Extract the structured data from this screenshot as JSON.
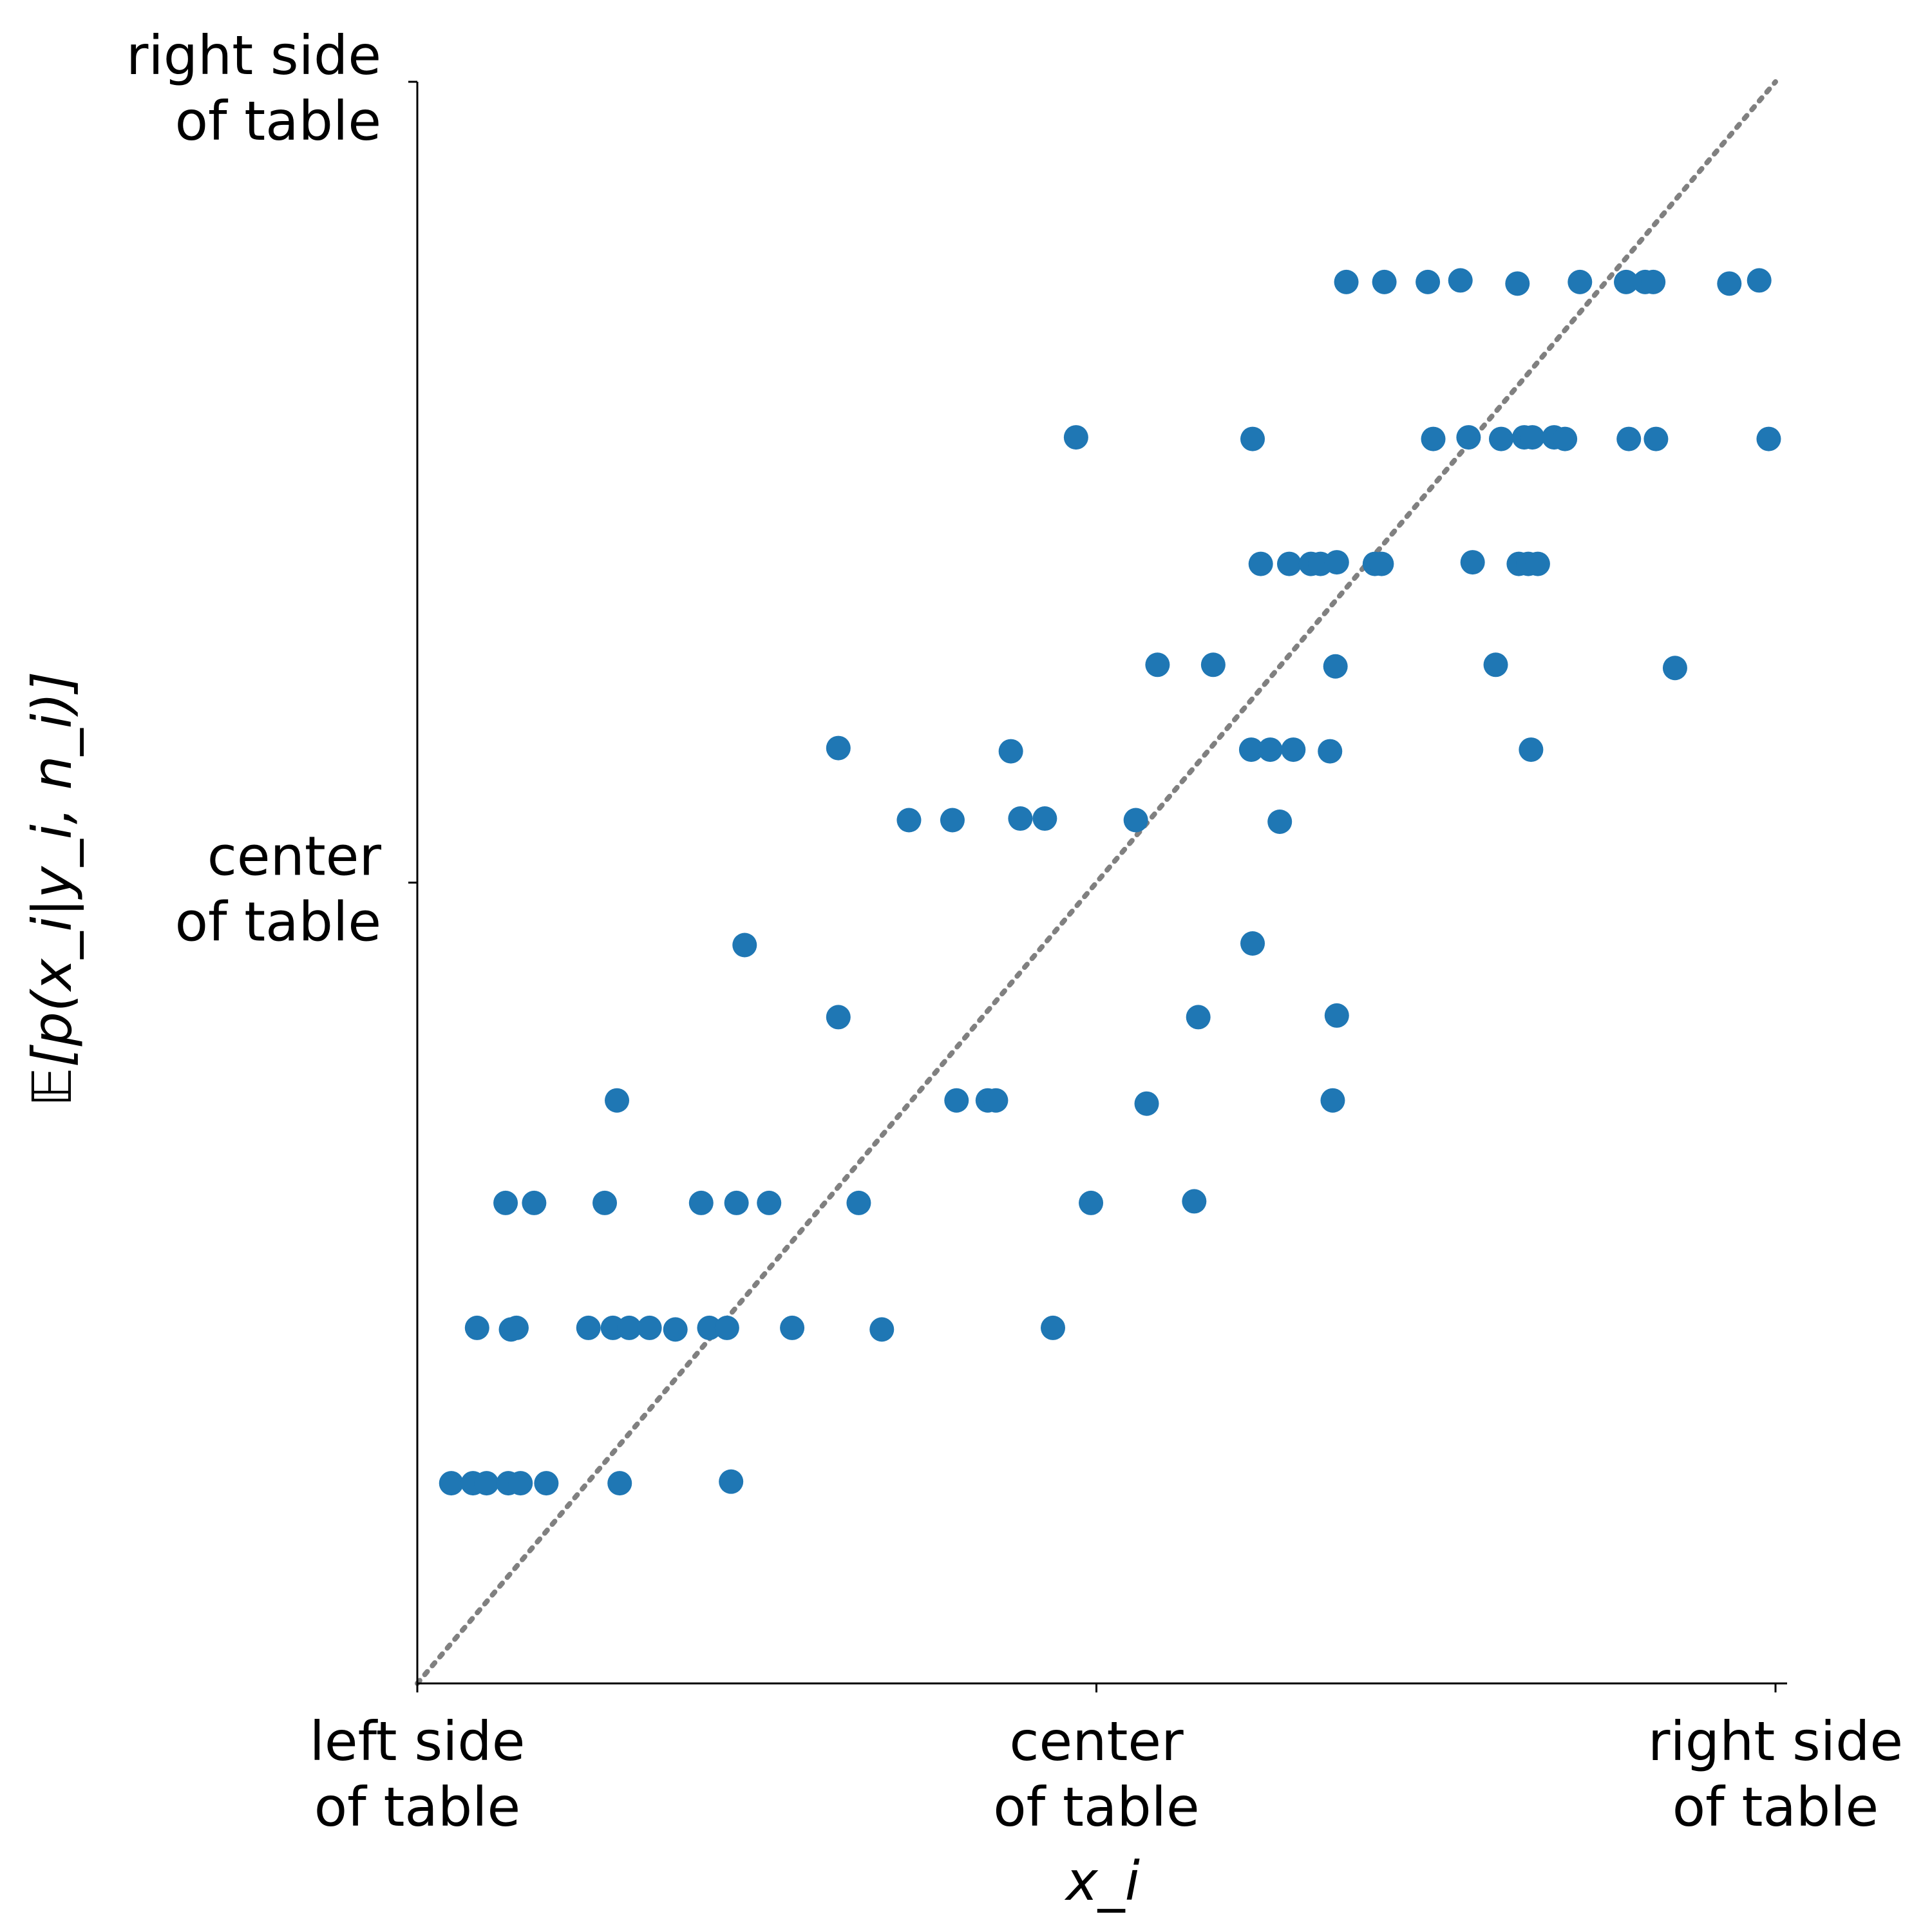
{
  "chart_data": {
    "type": "scatter",
    "title": "",
    "xlabel": "x_i",
    "ylabel": "𝔼[p(x_i|y_i, n_i)]",
    "xlim": [
      0,
      1
    ],
    "ylim": [
      0,
      1
    ],
    "grid": false,
    "x_ticks": [
      {
        "value": 0.0,
        "line1": "left side",
        "line2": "of table"
      },
      {
        "value": 0.5,
        "line1": "center",
        "line2": "of table"
      },
      {
        "value": 1.0,
        "line1": "right side",
        "line2": "of table"
      }
    ],
    "y_ticks": [
      {
        "value": 0.5,
        "line1": "center",
        "line2": "of table"
      },
      {
        "value": 1.0,
        "line1": "right side",
        "line2": "of table"
      }
    ],
    "reference_line": {
      "style": "dotted",
      "color": "#808080",
      "from": [
        0,
        0
      ],
      "to": [
        1,
        1
      ]
    },
    "marker_color": "#1f77b4",
    "series": [
      {
        "points": [
          [
            0.025,
            0.125
          ],
          [
            0.041,
            0.125
          ],
          [
            0.051,
            0.125
          ],
          [
            0.067,
            0.125
          ],
          [
            0.076,
            0.125
          ],
          [
            0.095,
            0.125
          ],
          [
            0.149,
            0.125
          ],
          [
            0.231,
            0.126
          ],
          [
            0.044,
            0.222
          ],
          [
            0.069,
            0.221
          ],
          [
            0.073,
            0.222
          ],
          [
            0.126,
            0.222
          ],
          [
            0.144,
            0.222
          ],
          [
            0.156,
            0.222
          ],
          [
            0.171,
            0.222
          ],
          [
            0.19,
            0.221
          ],
          [
            0.215,
            0.222
          ],
          [
            0.228,
            0.222
          ],
          [
            0.276,
            0.222
          ],
          [
            0.342,
            0.221
          ],
          [
            0.468,
            0.222
          ],
          [
            0.065,
            0.3
          ],
          [
            0.086,
            0.3
          ],
          [
            0.138,
            0.3
          ],
          [
            0.209,
            0.3
          ],
          [
            0.235,
            0.3
          ],
          [
            0.259,
            0.3
          ],
          [
            0.325,
            0.3
          ],
          [
            0.496,
            0.3
          ],
          [
            0.572,
            0.301
          ],
          [
            0.147,
            0.364
          ],
          [
            0.397,
            0.364
          ],
          [
            0.42,
            0.364
          ],
          [
            0.426,
            0.364
          ],
          [
            0.537,
            0.362
          ],
          [
            0.674,
            0.364
          ],
          [
            0.31,
            0.416
          ],
          [
            0.575,
            0.416
          ],
          [
            0.677,
            0.417
          ],
          [
            0.241,
            0.461
          ],
          [
            0.615,
            0.462
          ],
          [
            0.362,
            0.539
          ],
          [
            0.394,
            0.539
          ],
          [
            0.444,
            0.54
          ],
          [
            0.462,
            0.54
          ],
          [
            0.529,
            0.539
          ],
          [
            0.635,
            0.538
          ],
          [
            0.31,
            0.584
          ],
          [
            0.437,
            0.582
          ],
          [
            0.614,
            0.583
          ],
          [
            0.628,
            0.583
          ],
          [
            0.645,
            0.583
          ],
          [
            0.672,
            0.582
          ],
          [
            0.82,
            0.583
          ],
          [
            0.545,
            0.636
          ],
          [
            0.586,
            0.636
          ],
          [
            0.676,
            0.635
          ],
          [
            0.794,
            0.636
          ],
          [
            0.926,
            0.634
          ],
          [
            0.621,
            0.699
          ],
          [
            0.642,
            0.699
          ],
          [
            0.658,
            0.699
          ],
          [
            0.665,
            0.699
          ],
          [
            0.677,
            0.7
          ],
          [
            0.705,
            0.699
          ],
          [
            0.71,
            0.699
          ],
          [
            0.777,
            0.7
          ],
          [
            0.811,
            0.699
          ],
          [
            0.818,
            0.699
          ],
          [
            0.825,
            0.699
          ],
          [
            0.485,
            0.778
          ],
          [
            0.615,
            0.777
          ],
          [
            0.748,
            0.777
          ],
          [
            0.774,
            0.778
          ],
          [
            0.798,
            0.777
          ],
          [
            0.815,
            0.778
          ],
          [
            0.821,
            0.778
          ],
          [
            0.837,
            0.778
          ],
          [
            0.845,
            0.777
          ],
          [
            0.892,
            0.777
          ],
          [
            0.912,
            0.777
          ],
          [
            0.995,
            0.777
          ],
          [
            0.684,
            0.875
          ],
          [
            0.712,
            0.875
          ],
          [
            0.744,
            0.875
          ],
          [
            0.768,
            0.876
          ],
          [
            0.81,
            0.874
          ],
          [
            0.856,
            0.875
          ],
          [
            0.89,
            0.875
          ],
          [
            0.904,
            0.875
          ],
          [
            0.91,
            0.875
          ],
          [
            0.966,
            0.874
          ],
          [
            0.988,
            0.876
          ]
        ]
      }
    ]
  }
}
